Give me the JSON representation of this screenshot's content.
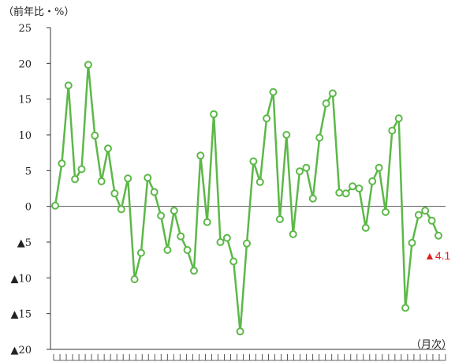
{
  "chart_data": {
    "type": "line",
    "unit_label": "（前年比・%）",
    "xlabel": "（月次）",
    "ylim": [
      -20,
      25
    ],
    "yticks": [
      25,
      20,
      15,
      10,
      5,
      0,
      -5,
      -10,
      -15,
      -20
    ],
    "ytick_labels": [
      "25",
      "20",
      "15",
      "10",
      "5",
      "0",
      "▲5",
      "▲10",
      "▲15",
      "▲20"
    ],
    "grid": false,
    "zero_line": true,
    "n_x_ticks": 63,
    "series": [
      {
        "color": "#5cb848",
        "marker": "hollow-circle",
        "values": [
          0.1,
          6.0,
          16.9,
          3.8,
          5.2,
          19.8,
          9.9,
          3.5,
          8.1,
          1.8,
          -0.4,
          3.9,
          -10.2,
          -6.5,
          4.0,
          2.0,
          -1.3,
          -6.1,
          -0.6,
          -4.2,
          -6.1,
          -9.0,
          7.1,
          -2.2,
          12.9,
          -5.0,
          -4.4,
          -7.7,
          -17.5,
          -5.2,
          6.3,
          3.4,
          12.3,
          16.0,
          -1.8,
          10.0,
          -3.9,
          4.9,
          5.4,
          1.1,
          9.6,
          14.4,
          15.8,
          1.9,
          1.8,
          2.8,
          2.5,
          -3.0,
          3.5,
          5.4,
          -0.8,
          10.6,
          12.3,
          -14.2,
          -5.1,
          -1.2,
          -0.6,
          -2.0,
          -4.1
        ]
      }
    ],
    "annotations": [
      {
        "text": "▲4.1",
        "color": "#e02020",
        "point_index": 58
      }
    ]
  }
}
